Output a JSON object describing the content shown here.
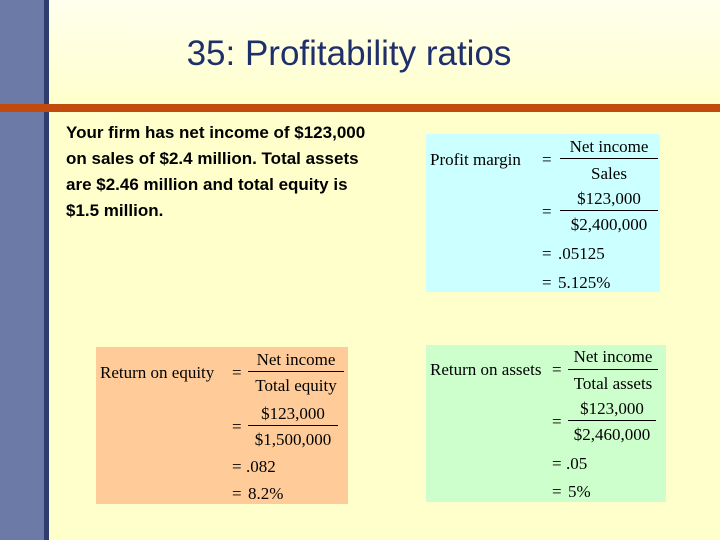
{
  "slide": {
    "title": "35: Profitability ratios",
    "problem_text": "Your firm has net income of $123,000 on sales of $2.4 million. Total assets are $2.46 million and total equity is $1.5 million."
  },
  "profit_margin": {
    "label": "Profit margin",
    "eq": "=",
    "num1": "Net income",
    "den1": "Sales",
    "num2": "$123,000",
    "den2": "$2,400,000",
    "step3": ".05125",
    "step4": "5.125%"
  },
  "return_on_equity": {
    "label": "Return on equity",
    "eq": "=",
    "num1": "Net income",
    "den1": "Total equity",
    "num2": "$123,000",
    "den2": "$1,500,000",
    "step3": ".082",
    "step4": "8.2%"
  },
  "return_on_assets": {
    "label": "Return on assets",
    "eq": "=",
    "num1": "Net income",
    "den1": "Total assets",
    "num2": "$123,000",
    "den2": "$2,460,000",
    "step3": ".05",
    "step4": "5%"
  },
  "colors": {
    "left_bar": "#6c7aa8",
    "rule": "#c24a0d",
    "title_text": "#1f2f6c",
    "profit_margin_box": "#ccffff",
    "roe_box": "#ffcc99",
    "roa_box": "#ccffcc"
  }
}
